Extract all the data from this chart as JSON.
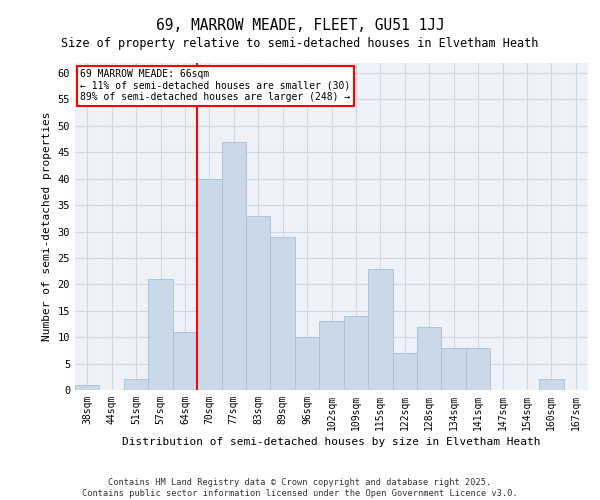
{
  "title": "69, MARROW MEADE, FLEET, GU51 1JJ",
  "subtitle": "Size of property relative to semi-detached houses in Elvetham Heath",
  "xlabel": "Distribution of semi-detached houses by size in Elvetham Heath",
  "ylabel": "Number of semi-detached properties",
  "footer_line1": "Contains HM Land Registry data © Crown copyright and database right 2025.",
  "footer_line2": "Contains public sector information licensed under the Open Government Licence v3.0.",
  "categories": [
    "38sqm",
    "44sqm",
    "51sqm",
    "57sqm",
    "64sqm",
    "70sqm",
    "77sqm",
    "83sqm",
    "89sqm",
    "96sqm",
    "102sqm",
    "109sqm",
    "115sqm",
    "122sqm",
    "128sqm",
    "134sqm",
    "141sqm",
    "147sqm",
    "154sqm",
    "160sqm",
    "167sqm"
  ],
  "values": [
    1,
    0,
    2,
    21,
    11,
    40,
    47,
    33,
    29,
    10,
    13,
    14,
    23,
    7,
    12,
    8,
    8,
    0,
    0,
    2,
    0
  ],
  "bar_color": "#c9d9ea",
  "bar_edge_color": "#a8c0d4",
  "grid_color": "#ccd8e4",
  "background_color": "#eef2f8",
  "annotation_title": "69 MARROW MEADE: 66sqm",
  "annotation_line1": "← 11% of semi-detached houses are smaller (30)",
  "annotation_line2": "89% of semi-detached houses are larger (248) →",
  "property_line_x": 4.5,
  "ylim": [
    0,
    62
  ],
  "yticks": [
    0,
    5,
    10,
    15,
    20,
    25,
    30,
    35,
    40,
    45,
    50,
    55,
    60
  ]
}
